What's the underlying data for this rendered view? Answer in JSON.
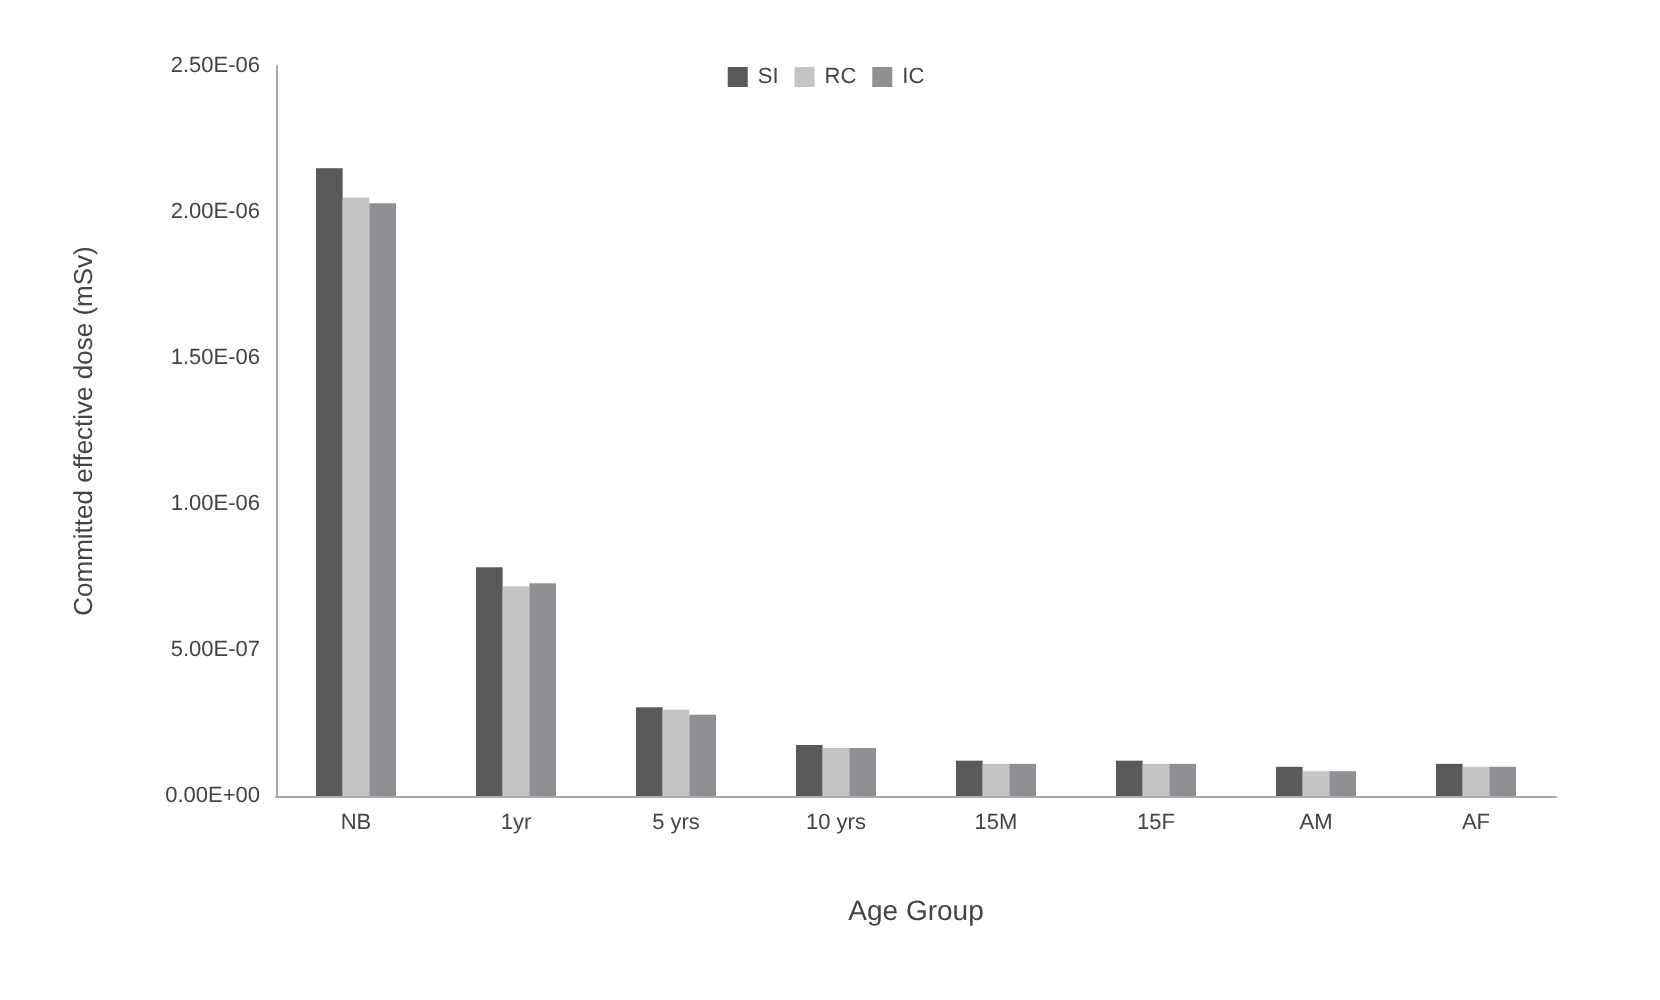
{
  "chart_data": {
    "type": "bar",
    "xlabel": "Age Group",
    "ylabel": "Committed effective dose (mSv)",
    "categories": [
      "NB",
      "1yr",
      "5 yrs",
      "10 yrs",
      "15M",
      "15F",
      "AM",
      "AF"
    ],
    "series": [
      {
        "name": "SI",
        "color": "#58595b",
        "values": [
          2.15e-06,
          7.83e-07,
          3.04e-07,
          1.75e-07,
          1.21e-07,
          1.21e-07,
          1e-07,
          1.1e-07
        ]
      },
      {
        "name": "RC",
        "color": "#c3c4c6",
        "values": [
          2.05e-06,
          7.18e-07,
          2.95e-07,
          1.64e-07,
          1.1e-07,
          1.1e-07,
          8.5e-08,
          1e-07
        ]
      },
      {
        "name": "IC",
        "color": "#8f9093",
        "values": [
          2.03e-06,
          7.29e-07,
          2.78e-07,
          1.64e-07,
          1.1e-07,
          1.1e-07,
          8.5e-08,
          1e-07
        ]
      }
    ],
    "ylim": [
      0,
      2.5e-06
    ],
    "yticks": [
      {
        "value": 0,
        "label": "0.00E+00"
      },
      {
        "value": 5e-07,
        "label": "5.00E-07"
      },
      {
        "value": 1e-06,
        "label": "1.00E-06"
      },
      {
        "value": 1.5e-06,
        "label": "1.50E-06"
      },
      {
        "value": 2e-06,
        "label": "2.00E-06"
      },
      {
        "value": 2.5e-06,
        "label": "2.50E-06"
      }
    ],
    "grid": false,
    "legend": "top"
  }
}
